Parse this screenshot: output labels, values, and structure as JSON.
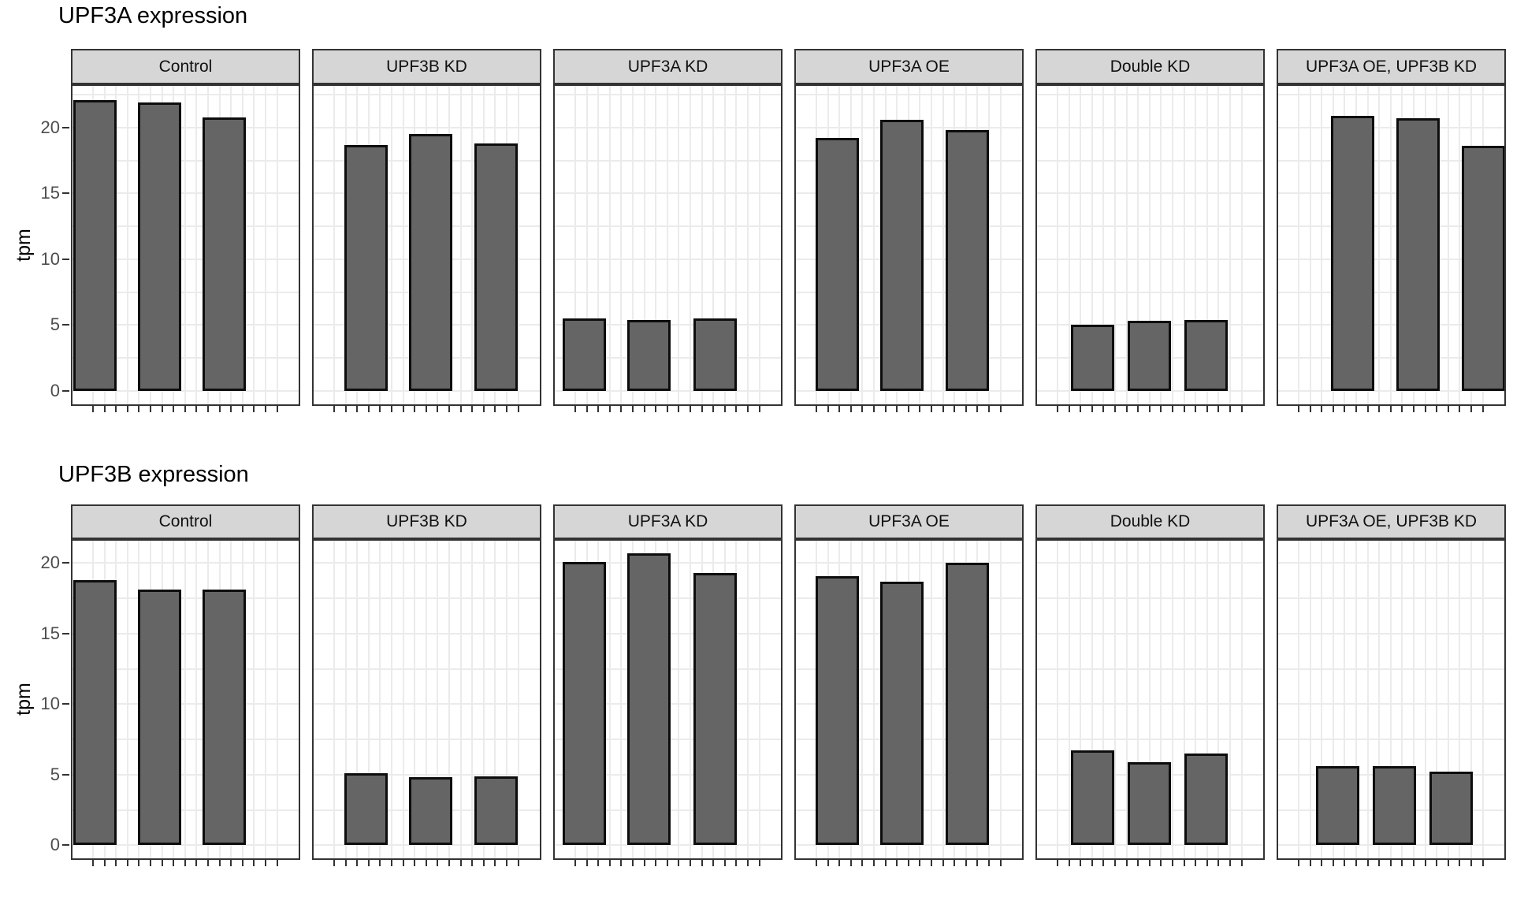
{
  "style": {
    "bar_fill": "#656565",
    "bar_stroke": "#0d0d0d",
    "strip_bg": "#d6d6d6",
    "panel_border": "#333333",
    "gridline": "#ebebeb",
    "tick_mark": "#333333",
    "tick_label_color": "#4d4d4d",
    "title_color": "#000000",
    "background": "#ffffff"
  },
  "chart_data": [
    {
      "type": "bar",
      "title": "UPF3A expression",
      "xlabel": "",
      "ylabel": "tpm",
      "ylim": [
        -1.16,
        23.3
      ],
      "yticks": [
        0,
        5,
        10,
        15,
        20
      ],
      "grid": "major and minor, light gray on white",
      "legend": "none",
      "x_axis": {
        "tick_labels": "none",
        "ticks_per_facet": 17
      },
      "facets": [
        {
          "label": "Control",
          "values": [
            22.1,
            21.9,
            20.8
          ]
        },
        {
          "label": "UPF3B KD",
          "values": [
            18.7,
            19.5,
            18.8
          ]
        },
        {
          "label": "UPF3A KD",
          "values": [
            5.5,
            5.4,
            5.5
          ]
        },
        {
          "label": "UPF3A OE",
          "values": [
            19.2,
            20.6,
            19.8
          ]
        },
        {
          "label": "Double KD",
          "values": [
            5.0,
            5.3,
            5.4
          ]
        },
        {
          "label": "UPF3A OE, UPF3B KD",
          "values": [
            20.9,
            20.7,
            18.6
          ]
        }
      ]
    },
    {
      "type": "bar",
      "title": "UPF3B expression",
      "xlabel": "",
      "ylabel": "tpm",
      "ylim": [
        -1.04,
        21.7
      ],
      "yticks": [
        0,
        5,
        10,
        15,
        20
      ],
      "grid": "major and minor, light gray on white",
      "legend": "none",
      "x_axis": {
        "tick_labels": "none",
        "ticks_per_facet": 17
      },
      "facets": [
        {
          "label": "Control",
          "values": [
            18.8,
            18.1,
            18.1
          ]
        },
        {
          "label": "UPF3B KD",
          "values": [
            5.1,
            4.8,
            4.9
          ]
        },
        {
          "label": "UPF3A KD",
          "values": [
            20.1,
            20.7,
            19.3
          ]
        },
        {
          "label": "UPF3A OE",
          "values": [
            19.1,
            18.7,
            20.0
          ]
        },
        {
          "label": "Double KD",
          "values": [
            6.7,
            5.9,
            6.5
          ]
        },
        {
          "label": "UPF3A OE, UPF3B KD",
          "values": [
            5.6,
            5.6,
            5.2
          ]
        }
      ]
    }
  ]
}
